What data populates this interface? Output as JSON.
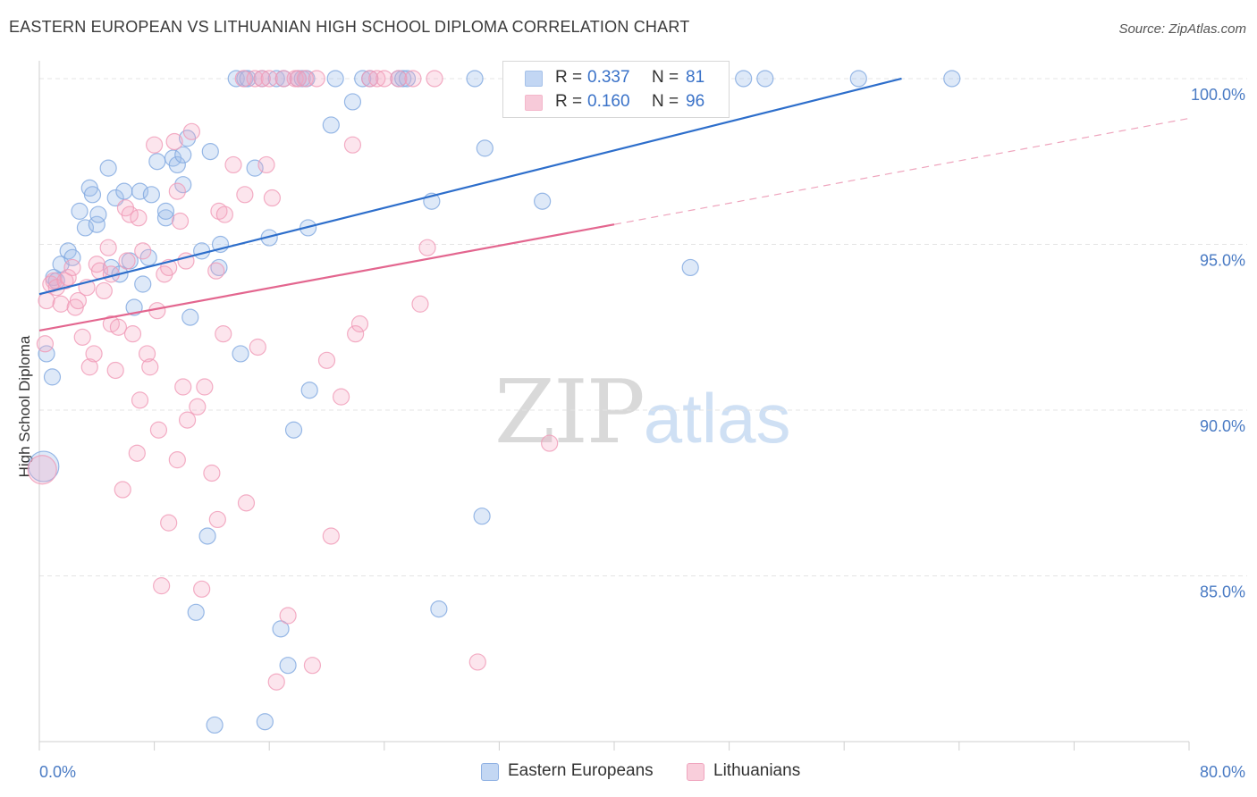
{
  "chart_data": {
    "type": "scatter",
    "title": "EASTERN EUROPEAN VS LITHUANIAN HIGH SCHOOL DIPLOMA CORRELATION CHART",
    "source": "Source: ZipAtlas.com",
    "ylabel": "High School Diploma",
    "xlabel": "",
    "xlim": [
      0,
      80
    ],
    "ylim": [
      80,
      100.7
    ],
    "y_ticks": [
      {
        "value": 100,
        "label": "100.0%"
      },
      {
        "value": 95,
        "label": "95.0%"
      },
      {
        "value": 90,
        "label": "90.0%"
      },
      {
        "value": 85,
        "label": "85.0%"
      }
    ],
    "x_tick_labels": [
      {
        "value": 0,
        "label": "0.0%"
      },
      {
        "value": 80,
        "label": "80.0%"
      }
    ],
    "grid": true,
    "legend": [
      {
        "r_label": "R =",
        "r_value": "0.337",
        "n_label": "N =",
        "n_value": "81",
        "color": "#a9c6ee"
      },
      {
        "r_label": "R =",
        "r_value": "0.160",
        "n_label": "N =",
        "n_value": "96",
        "color": "#f5b5c9"
      }
    ],
    "series": [
      {
        "name": "Eastern Europeans",
        "color": "#7fa8e0",
        "trend_color": "#2d6ecb",
        "trend": {
          "x0": 0,
          "y0": 93.5,
          "x1": 60,
          "y1": 100
        },
        "points": [
          [
            0.3,
            88.3
          ],
          [
            0.5,
            91.7
          ],
          [
            0.9,
            91.0
          ],
          [
            1.0,
            94.0
          ],
          [
            1.2,
            93.9
          ],
          [
            1.5,
            94.4
          ],
          [
            2.0,
            94.8
          ],
          [
            2.3,
            94.6
          ],
          [
            2.8,
            96.0
          ],
          [
            3.2,
            95.5
          ],
          [
            3.5,
            96.7
          ],
          [
            3.7,
            96.5
          ],
          [
            4.0,
            95.6
          ],
          [
            4.1,
            95.9
          ],
          [
            4.8,
            97.3
          ],
          [
            5.0,
            94.3
          ],
          [
            5.3,
            96.4
          ],
          [
            5.6,
            94.1
          ],
          [
            5.9,
            96.6
          ],
          [
            6.3,
            94.5
          ],
          [
            6.6,
            93.1
          ],
          [
            7.0,
            96.6
          ],
          [
            7.2,
            93.8
          ],
          [
            7.6,
            94.6
          ],
          [
            7.8,
            96.5
          ],
          [
            8.2,
            97.5
          ],
          [
            8.8,
            95.8
          ],
          [
            8.8,
            96.0
          ],
          [
            9.3,
            97.6
          ],
          [
            9.6,
            97.4
          ],
          [
            10.0,
            97.7
          ],
          [
            10.0,
            96.8
          ],
          [
            10.3,
            98.2
          ],
          [
            10.5,
            92.8
          ],
          [
            10.9,
            83.9
          ],
          [
            11.3,
            94.8
          ],
          [
            11.7,
            86.2
          ],
          [
            11.9,
            97.8
          ],
          [
            12.2,
            80.5
          ],
          [
            12.5,
            94.3
          ],
          [
            12.6,
            95.0
          ],
          [
            13.7,
            100.0
          ],
          [
            14.0,
            91.7
          ],
          [
            14.3,
            100.0
          ],
          [
            14.5,
            100.0
          ],
          [
            15.0,
            97.3
          ],
          [
            15.5,
            100.0
          ],
          [
            15.7,
            80.6
          ],
          [
            16.0,
            95.2
          ],
          [
            16.5,
            100.0
          ],
          [
            16.8,
            83.4
          ],
          [
            17.0,
            100.0
          ],
          [
            17.3,
            82.3
          ],
          [
            17.7,
            89.4
          ],
          [
            18.0,
            100.0
          ],
          [
            18.3,
            100.0
          ],
          [
            18.6,
            100.0
          ],
          [
            18.7,
            95.5
          ],
          [
            18.8,
            90.6
          ],
          [
            20.3,
            98.6
          ],
          [
            20.6,
            100.0
          ],
          [
            21.8,
            99.3
          ],
          [
            22.5,
            100.0
          ],
          [
            23.0,
            100.0
          ],
          [
            25.0,
            100.0
          ],
          [
            25.3,
            100.0
          ],
          [
            25.6,
            100.0
          ],
          [
            27.3,
            96.3
          ],
          [
            27.8,
            84.0
          ],
          [
            30.3,
            100.0
          ],
          [
            30.8,
            86.8
          ],
          [
            31.0,
            97.9
          ],
          [
            33.0,
            100.0
          ],
          [
            35.0,
            96.3
          ],
          [
            38.3,
            100.0
          ],
          [
            45.0,
            100.0
          ],
          [
            45.3,
            94.3
          ],
          [
            49.0,
            100.0
          ],
          [
            50.5,
            100.0
          ],
          [
            57.0,
            100.0
          ],
          [
            63.5,
            100.0
          ]
        ]
      },
      {
        "name": "Lithuanians",
        "color": "#f09ab6",
        "trend_color": "#e3668f",
        "trend": {
          "x0": 0,
          "y0": 92.4,
          "x1": 40,
          "y1": 95.6
        },
        "trend_dash": {
          "x0": 40,
          "y0": 95.6,
          "x1": 80,
          "y1": 98.8
        },
        "points": [
          [
            0.2,
            88.2
          ],
          [
            0.4,
            92.0
          ],
          [
            0.5,
            93.3
          ],
          [
            0.8,
            93.8
          ],
          [
            1.0,
            93.9
          ],
          [
            1.2,
            93.7
          ],
          [
            1.5,
            93.2
          ],
          [
            1.8,
            93.9
          ],
          [
            2.0,
            94.0
          ],
          [
            2.3,
            94.3
          ],
          [
            2.5,
            93.1
          ],
          [
            2.7,
            93.3
          ],
          [
            3.0,
            92.2
          ],
          [
            3.3,
            93.7
          ],
          [
            3.5,
            91.3
          ],
          [
            3.8,
            91.7
          ],
          [
            4.0,
            94.4
          ],
          [
            4.2,
            94.2
          ],
          [
            4.5,
            93.6
          ],
          [
            4.8,
            94.9
          ],
          [
            5.0,
            94.1
          ],
          [
            5.0,
            92.6
          ],
          [
            5.3,
            91.2
          ],
          [
            5.5,
            92.5
          ],
          [
            5.8,
            87.6
          ],
          [
            6.0,
            96.1
          ],
          [
            6.1,
            94.5
          ],
          [
            6.3,
            95.9
          ],
          [
            6.5,
            92.3
          ],
          [
            6.8,
            88.7
          ],
          [
            6.9,
            95.8
          ],
          [
            7.0,
            90.3
          ],
          [
            7.2,
            94.8
          ],
          [
            7.5,
            91.7
          ],
          [
            7.7,
            91.3
          ],
          [
            8.0,
            98.0
          ],
          [
            8.2,
            93.0
          ],
          [
            8.3,
            89.4
          ],
          [
            8.5,
            84.7
          ],
          [
            8.7,
            94.1
          ],
          [
            9.0,
            94.3
          ],
          [
            9.0,
            86.6
          ],
          [
            9.4,
            98.1
          ],
          [
            9.6,
            96.6
          ],
          [
            9.6,
            88.5
          ],
          [
            9.8,
            95.7
          ],
          [
            10.0,
            90.7
          ],
          [
            10.2,
            94.5
          ],
          [
            10.3,
            89.7
          ],
          [
            10.6,
            98.4
          ],
          [
            11.0,
            90.1
          ],
          [
            11.3,
            84.6
          ],
          [
            11.5,
            90.7
          ],
          [
            12.0,
            88.1
          ],
          [
            12.3,
            94.2
          ],
          [
            12.4,
            86.7
          ],
          [
            12.5,
            96.0
          ],
          [
            12.8,
            92.3
          ],
          [
            12.9,
            95.9
          ],
          [
            13.5,
            97.4
          ],
          [
            14.2,
            100.0
          ],
          [
            14.3,
            96.5
          ],
          [
            14.4,
            87.2
          ],
          [
            15.0,
            100.0
          ],
          [
            15.2,
            91.9
          ],
          [
            15.5,
            100.0
          ],
          [
            15.8,
            97.4
          ],
          [
            16.0,
            100.0
          ],
          [
            16.2,
            96.4
          ],
          [
            16.5,
            81.8
          ],
          [
            17.0,
            100.0
          ],
          [
            17.3,
            83.8
          ],
          [
            17.8,
            100.0
          ],
          [
            18.0,
            100.0
          ],
          [
            18.5,
            100.0
          ],
          [
            19.0,
            82.3
          ],
          [
            19.3,
            100.0
          ],
          [
            20.0,
            91.5
          ],
          [
            20.3,
            86.2
          ],
          [
            21.0,
            90.4
          ],
          [
            21.8,
            98.0
          ],
          [
            22.0,
            92.3
          ],
          [
            22.3,
            92.6
          ],
          [
            23.0,
            100.0
          ],
          [
            23.5,
            100.0
          ],
          [
            24.0,
            100.0
          ],
          [
            25.0,
            100.0
          ],
          [
            26.0,
            100.0
          ],
          [
            26.5,
            93.2
          ],
          [
            27.0,
            94.9
          ],
          [
            27.5,
            100.0
          ],
          [
            30.5,
            82.4
          ],
          [
            35.0,
            100.0
          ],
          [
            35.5,
            89.0
          ],
          [
            38.0,
            100.0
          ],
          [
            40.0,
            100.0
          ]
        ]
      }
    ]
  },
  "legend_labels": [
    "Eastern Europeans",
    "Lithuanians"
  ],
  "watermark": {
    "part1": "ZIP",
    "part2": "atlas"
  }
}
